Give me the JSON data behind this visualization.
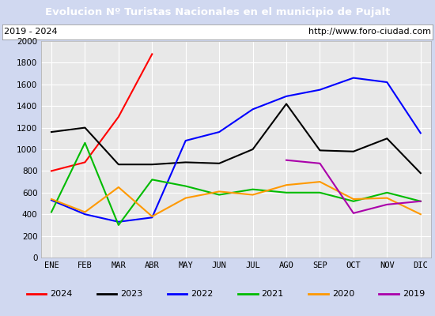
{
  "title": "Evolucion Nº Turistas Nacionales en el municipio de Pujalt",
  "subtitle_left": "2019 - 2024",
  "subtitle_right": "http://www.foro-ciudad.com",
  "months": [
    "ENE",
    "FEB",
    "MAR",
    "ABR",
    "MAY",
    "JUN",
    "JUL",
    "AGO",
    "SEP",
    "OCT",
    "NOV",
    "DIC"
  ],
  "ylim": [
    0,
    2000
  ],
  "yticks": [
    0,
    200,
    400,
    600,
    800,
    1000,
    1200,
    1400,
    1600,
    1800,
    2000
  ],
  "series": {
    "2024": {
      "color": "#ff0000",
      "values": [
        800,
        880,
        1300,
        1880,
        null,
        null,
        null,
        null,
        null,
        null,
        null,
        null
      ]
    },
    "2023": {
      "color": "#000000",
      "values": [
        1160,
        1200,
        860,
        860,
        880,
        870,
        1000,
        1420,
        990,
        980,
        1100,
        780
      ]
    },
    "2022": {
      "color": "#0000ff",
      "values": [
        530,
        400,
        330,
        370,
        1080,
        1160,
        1370,
        1490,
        1550,
        1660,
        1620,
        1150
      ]
    },
    "2021": {
      "color": "#00bb00",
      "values": [
        420,
        1060,
        300,
        720,
        660,
        580,
        630,
        600,
        600,
        520,
        600,
        520
      ]
    },
    "2020": {
      "color": "#ff9900",
      "values": [
        540,
        420,
        650,
        380,
        550,
        610,
        580,
        670,
        700,
        540,
        550,
        400
      ]
    },
    "2019": {
      "color": "#aa00aa",
      "values": [
        null,
        null,
        null,
        null,
        null,
        null,
        null,
        900,
        870,
        410,
        490,
        520
      ]
    }
  },
  "title_bg_color": "#4472c4",
  "title_text_color": "#ffffff",
  "plot_bg_color": "#e8e8e8",
  "grid_color": "#ffffff",
  "outer_bg_color": "#d0d8f0",
  "legend_box_color": "#ffffff"
}
